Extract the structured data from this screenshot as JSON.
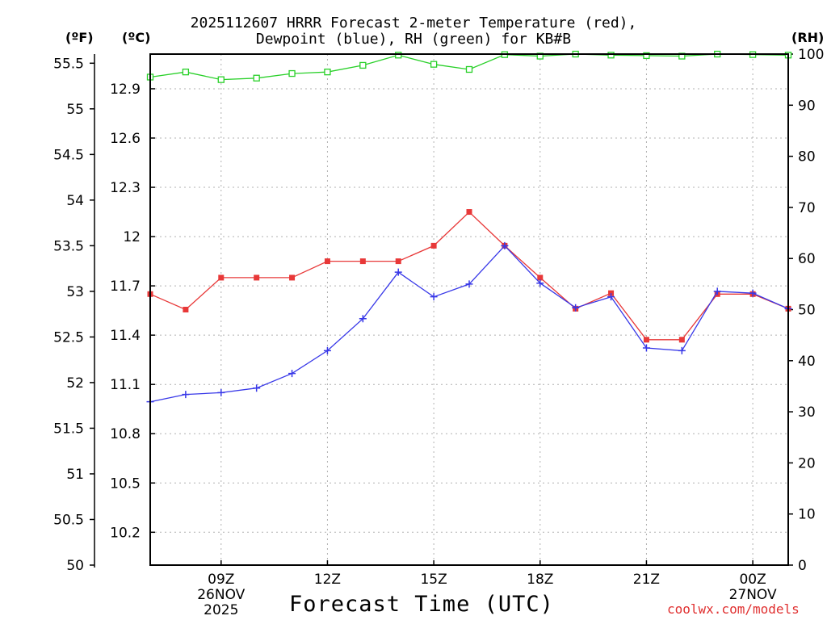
{
  "chart_data": {
    "type": "line",
    "title_line1": "2025112607 HRRR Forecast 2-meter Temperature (red),",
    "title_line2": "Dewpoint (blue), RH (green) for KB#B",
    "units": {
      "left_f": "(ºF)",
      "left_c": "(ºC)",
      "right_rh": "(RH)"
    },
    "xlabel": "Forecast Time (UTC)",
    "credit": "coolwx.com/models",
    "x_hours": [
      7,
      8,
      9,
      10,
      11,
      12,
      13,
      14,
      15,
      16,
      17,
      18,
      19,
      20,
      21,
      22,
      23,
      24,
      25
    ],
    "x_ticks": [
      {
        "hour": 9,
        "label": "09Z",
        "sub1": "26NOV",
        "sub2": "2025"
      },
      {
        "hour": 12,
        "label": "12Z"
      },
      {
        "hour": 15,
        "label": "15Z"
      },
      {
        "hour": 18,
        "label": "18Z"
      },
      {
        "hour": 21,
        "label": "21Z"
      },
      {
        "hour": 24,
        "label": "00Z",
        "sub1": "27NOV"
      }
    ],
    "xlim": [
      7,
      25
    ],
    "axes": {
      "fahrenheit": {
        "range": [
          50,
          55.6
        ],
        "ticks": [
          50,
          50.5,
          51,
          51.5,
          52,
          52.5,
          53,
          53.5,
          54,
          54.5,
          55,
          55.5
        ]
      },
      "celsius": {
        "ticks": [
          10.2,
          10.5,
          10.8,
          11.1,
          11.4,
          11.7,
          12,
          12.3,
          12.6,
          12.9
        ]
      },
      "rh": {
        "range": [
          0,
          100
        ],
        "ticks": [
          0,
          10,
          20,
          30,
          40,
          50,
          60,
          70,
          80,
          90,
          100
        ]
      }
    },
    "series": [
      {
        "name": "Temperature",
        "unit": "ºF",
        "color": "#e83838",
        "marker": "square",
        "values": [
          52.97,
          52.8,
          53.15,
          53.15,
          53.15,
          53.33,
          53.33,
          53.33,
          53.5,
          53.87,
          53.5,
          53.15,
          52.81,
          52.98,
          52.47,
          52.47,
          52.97,
          52.97,
          52.81
        ]
      },
      {
        "name": "Dewpoint",
        "unit": "ºF",
        "color": "#3838e8",
        "marker": "plus",
        "values": [
          51.79,
          51.87,
          51.89,
          51.94,
          52.1,
          52.35,
          52.7,
          53.21,
          52.94,
          53.08,
          53.5,
          53.09,
          52.82,
          52.94,
          52.38,
          52.35,
          53.0,
          52.98,
          52.81
        ]
      },
      {
        "name": "RH",
        "unit": "%",
        "color": "#28d028",
        "marker": "open-square",
        "values": [
          95.5,
          96.5,
          95.0,
          95.3,
          96.2,
          96.5,
          97.8,
          99.8,
          98.0,
          97.0,
          99.9,
          99.6,
          100,
          99.8,
          99.7,
          99.6,
          100,
          99.9,
          99.8
        ]
      }
    ]
  }
}
